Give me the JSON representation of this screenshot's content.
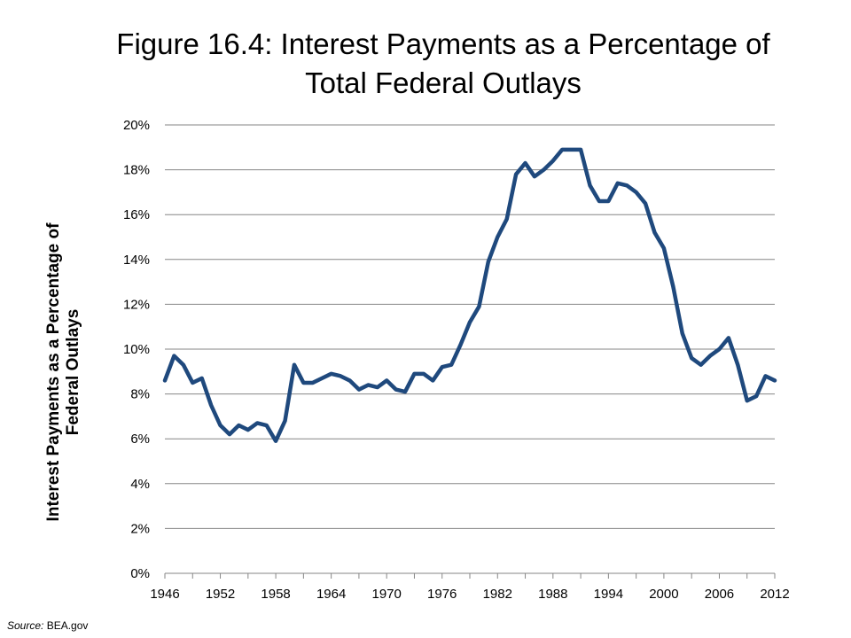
{
  "chart_data": {
    "type": "line",
    "title": [
      "Figure 16.4: Interest Payments as a Percentage of",
      "Total Federal Outlays"
    ],
    "ylabel": [
      "Interest Payments as a Percentage of",
      "Federal Outlays"
    ],
    "xlabel": "",
    "xlim": [
      1946,
      2012
    ],
    "ylim": [
      0,
      20
    ],
    "x_ticks": [
      1946,
      1952,
      1958,
      1964,
      1970,
      1976,
      1982,
      1988,
      1994,
      2000,
      2006,
      2012
    ],
    "y_ticks": [
      0,
      2,
      4,
      6,
      8,
      10,
      12,
      14,
      16,
      18,
      20
    ],
    "y_tick_labels": [
      "0%",
      "2%",
      "4%",
      "6%",
      "8%",
      "10%",
      "12%",
      "14%",
      "16%",
      "18%",
      "20%"
    ],
    "grid": "horizontal",
    "line_color": "#1f497d",
    "series": [
      {
        "x": [
          1946,
          1947,
          1948,
          1949,
          1950,
          1951,
          1952,
          1953,
          1954,
          1955,
          1956,
          1957,
          1958,
          1959,
          1960,
          1961,
          1962,
          1963,
          1964,
          1965,
          1966,
          1967,
          1968,
          1969,
          1970,
          1971,
          1972,
          1973,
          1974,
          1975,
          1976,
          1977,
          1978,
          1979,
          1980,
          1981,
          1982,
          1983,
          1984,
          1985,
          1986,
          1987,
          1988,
          1989,
          1990,
          1991,
          1992,
          1993,
          1994,
          1995,
          1996,
          1997,
          1998,
          1999,
          2000,
          2001,
          2002,
          2003,
          2004,
          2005,
          2006,
          2007,
          2008,
          2009,
          2010,
          2011,
          2012
        ],
        "values": [
          8.6,
          9.7,
          9.3,
          8.5,
          8.7,
          7.5,
          6.6,
          6.2,
          6.6,
          6.4,
          6.7,
          6.6,
          5.9,
          6.8,
          9.3,
          8.5,
          8.5,
          8.7,
          8.9,
          8.8,
          8.6,
          8.2,
          8.4,
          8.3,
          8.6,
          8.2,
          8.1,
          8.9,
          8.9,
          8.6,
          9.2,
          9.3,
          10.2,
          11.2,
          11.9,
          13.9,
          15.0,
          15.8,
          17.8,
          18.3,
          17.7,
          18.0,
          18.4,
          18.9,
          18.9,
          18.9,
          17.3,
          16.6,
          16.6,
          17.4,
          17.3,
          17.0,
          16.5,
          15.2,
          14.5,
          12.8,
          10.7,
          9.6,
          9.3,
          9.7,
          10.0,
          10.5,
          9.3,
          7.7,
          7.9,
          8.8,
          8.6
        ]
      }
    ]
  },
  "source": {
    "prefix": "Source:",
    "text": " BEA.gov"
  }
}
